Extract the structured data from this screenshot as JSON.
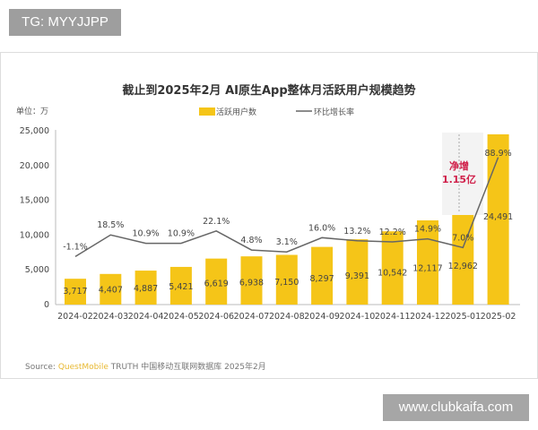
{
  "badge_text": "TG: MYYJJPP",
  "watermark_text": "www.clubkaifa.com",
  "source": {
    "label": "Source:",
    "brand": "QuestMobile",
    "text": "TRUTH 中国移动互联网数据库 2025年2月"
  },
  "chart_data": {
    "type": "bar+line",
    "title": "截止到2025年2月 AI原生App整体月活跃用户规模趋势",
    "unit_label": "单位：万",
    "categories": [
      "2024-02",
      "2024-03",
      "2024-04",
      "2024-05",
      "2024-06",
      "2024-07",
      "2024-08",
      "2024-09",
      "2024-10",
      "2024-11",
      "2024-12",
      "2025-01",
      "2025-02"
    ],
    "series": [
      {
        "name": "活跃用户数",
        "type": "bar",
        "color": "#f5c518",
        "values": [
          3717,
          4407,
          4887,
          5421,
          6619,
          6938,
          7150,
          8297,
          9391,
          10542,
          12117,
          12962,
          24491
        ],
        "labels": [
          "3,717",
          "4,407",
          "4,887",
          "5,421",
          "6,619",
          "6,938",
          "7,150",
          "8,297",
          "9,391",
          "10,542",
          "12,117",
          "12,962",
          "24,491"
        ]
      },
      {
        "name": "环比增长率",
        "type": "line",
        "color": "#666666",
        "values": [
          -1.1,
          18.5,
          10.9,
          10.9,
          22.1,
          4.8,
          3.1,
          16.0,
          13.2,
          12.2,
          14.9,
          7.0,
          88.9
        ],
        "labels": [
          "-1.1%",
          "18.5%",
          "10.9%",
          "10.9%",
          "22.1%",
          "4.8%",
          "3.1%",
          "16.0%",
          "13.2%",
          "12.2%",
          "14.9%",
          "7.0%",
          "88.9%"
        ]
      }
    ],
    "ylim": [
      0,
      25000
    ],
    "yticks": [
      "0",
      "5,000",
      "10,000",
      "15,000",
      "20,000",
      "25,000"
    ],
    "annotation": {
      "line1": "净增",
      "line2": "1.15亿",
      "color": "#d0204a"
    },
    "legend_placement": "top-center",
    "grid": false
  }
}
